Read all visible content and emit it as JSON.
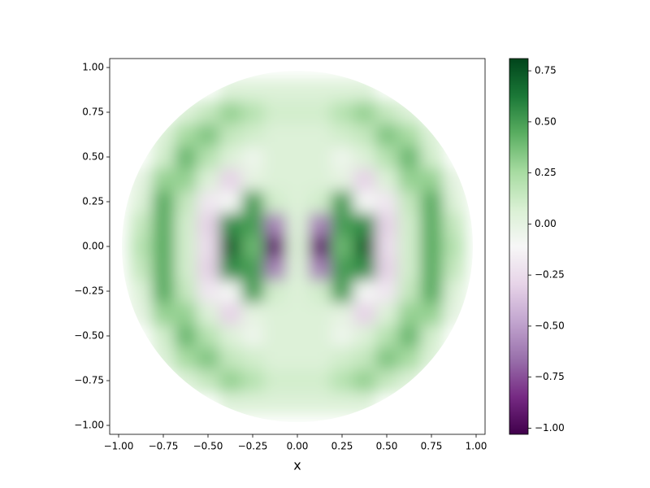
{
  "chart_data": {
    "type": "heatmap",
    "xlabel": "x",
    "x": [
      -1,
      -0.875,
      -0.75,
      -0.625,
      -0.5,
      -0.375,
      -0.25,
      -0.125,
      0,
      0.125,
      0.25,
      0.375,
      0.5,
      0.625,
      0.75,
      0.875,
      1
    ],
    "y": [
      -1,
      -0.875,
      -0.75,
      -0.625,
      -0.5,
      -0.375,
      -0.25,
      -0.125,
      0,
      0.125,
      0.25,
      0.375,
      0.5,
      0.625,
      0.75,
      0.875,
      1
    ],
    "z": [
      [
        null,
        null,
        null,
        null,
        null,
        null,
        null,
        null,
        null,
        null,
        null,
        null,
        null,
        null,
        null,
        null,
        null
      ],
      [
        null,
        null,
        null,
        null,
        null,
        0.05,
        0.05,
        0.05,
        0.05,
        0.05,
        0.05,
        0.05,
        null,
        null,
        null,
        null,
        null
      ],
      [
        null,
        null,
        null,
        0.05,
        0.15,
        0.3,
        0.2,
        0.1,
        0.1,
        0.1,
        0.2,
        0.3,
        0.15,
        0.05,
        null,
        null,
        null
      ],
      [
        null,
        null,
        0.05,
        0.25,
        0.35,
        0.15,
        0.1,
        0.05,
        0.05,
        0.05,
        0.1,
        0.15,
        0.35,
        0.25,
        0.05,
        null,
        null
      ],
      [
        null,
        null,
        0.1,
        0.4,
        0.2,
        0.05,
        -0.05,
        0.05,
        0.05,
        0.05,
        -0.05,
        0.05,
        0.2,
        0.4,
        0.1,
        null,
        null
      ],
      [
        null,
        0,
        0.3,
        0.3,
        0.05,
        -0.3,
        0,
        0.05,
        0.05,
        0.05,
        0,
        -0.3,
        0.05,
        0.3,
        0.3,
        0,
        null
      ],
      [
        null,
        0.05,
        0.45,
        0.15,
        -0.2,
        -0.1,
        0.5,
        0.1,
        0.05,
        0.1,
        0.5,
        -0.1,
        -0.2,
        0.15,
        0.45,
        0.05,
        null
      ],
      [
        null,
        0.15,
        0.45,
        0.1,
        -0.3,
        0.55,
        0.5,
        -0.6,
        0.05,
        -0.6,
        0.5,
        0.55,
        -0.3,
        0.1,
        0.45,
        0.15,
        null
      ],
      [
        null,
        0.2,
        0.45,
        0.1,
        -0.25,
        0.7,
        0.4,
        -0.9,
        0.05,
        -0.9,
        0.4,
        0.7,
        -0.25,
        0.1,
        0.45,
        0.2,
        null
      ],
      [
        null,
        0.15,
        0.45,
        0.1,
        -0.3,
        0.55,
        0.5,
        -0.6,
        0.05,
        -0.6,
        0.5,
        0.55,
        -0.3,
        0.1,
        0.45,
        0.15,
        null
      ],
      [
        null,
        0.05,
        0.45,
        0.15,
        -0.2,
        -0.1,
        0.5,
        0.1,
        0.05,
        0.1,
        0.5,
        -0.1,
        -0.2,
        0.15,
        0.45,
        0.05,
        null
      ],
      [
        null,
        0,
        0.3,
        0.3,
        0.05,
        -0.3,
        0,
        0.05,
        0.05,
        0.05,
        0,
        -0.3,
        0.05,
        0.3,
        0.3,
        0,
        null
      ],
      [
        null,
        null,
        0.1,
        0.4,
        0.2,
        0.05,
        -0.05,
        0.05,
        0.05,
        0.05,
        -0.05,
        0.05,
        0.2,
        0.4,
        0.1,
        null,
        null
      ],
      [
        null,
        null,
        0.05,
        0.25,
        0.35,
        0.15,
        0.1,
        0.05,
        0.05,
        0.05,
        0.1,
        0.15,
        0.35,
        0.25,
        0.05,
        null,
        null
      ],
      [
        null,
        null,
        null,
        0.05,
        0.15,
        0.3,
        0.2,
        0.1,
        0.1,
        0.1,
        0.2,
        0.3,
        0.15,
        0.05,
        null,
        null,
        null
      ],
      [
        null,
        null,
        null,
        null,
        null,
        0.05,
        0.05,
        0.05,
        0.05,
        0.05,
        0.05,
        0.05,
        null,
        null,
        null,
        null,
        null
      ],
      [
        null,
        null,
        null,
        null,
        null,
        null,
        null,
        null,
        null,
        null,
        null,
        null,
        null,
        null,
        null,
        null,
        null
      ]
    ],
    "xlim": [
      -1.05,
      1.05
    ],
    "ylim": [
      -1.05,
      1.05
    ],
    "xticks": [
      {
        "value": -1,
        "label": "−1.00"
      },
      {
        "value": -0.75,
        "label": "−0.75"
      },
      {
        "value": -0.5,
        "label": "−0.50"
      },
      {
        "value": -0.25,
        "label": "−0.25"
      },
      {
        "value": 0,
        "label": "0.00"
      },
      {
        "value": 0.25,
        "label": "0.25"
      },
      {
        "value": 0.5,
        "label": "0.50"
      },
      {
        "value": 0.75,
        "label": "0.75"
      },
      {
        "value": 1,
        "label": "1.00"
      }
    ],
    "yticks": [
      {
        "value": -1,
        "label": "−1.00"
      },
      {
        "value": -0.75,
        "label": "−0.75"
      },
      {
        "value": -0.5,
        "label": "−0.50"
      },
      {
        "value": -0.25,
        "label": "−0.25"
      },
      {
        "value": 0,
        "label": "0.00"
      },
      {
        "value": 0.25,
        "label": "0.25"
      },
      {
        "value": 0.5,
        "label": "0.50"
      },
      {
        "value": 0.75,
        "label": "0.75"
      },
      {
        "value": 1,
        "label": "1.00"
      }
    ],
    "clim": [
      -1.03,
      0.81
    ],
    "cticks": [
      {
        "value": -1,
        "label": "−1.00"
      },
      {
        "value": -0.75,
        "label": "−0.75"
      },
      {
        "value": -0.5,
        "label": "−0.50"
      },
      {
        "value": -0.25,
        "label": "−0.25"
      },
      {
        "value": 0,
        "label": "0.00"
      },
      {
        "value": 0.25,
        "label": "0.25"
      },
      {
        "value": 0.5,
        "label": "0.50"
      },
      {
        "value": 0.75,
        "label": "0.75"
      }
    ],
    "colormap": [
      "#40004b",
      "#762a83",
      "#9970ab",
      "#c2a5cf",
      "#e7d4e8",
      "#f7f7f7",
      "#d9f0d3",
      "#a6dba0",
      "#5aae61",
      "#1b7837",
      "#00441b"
    ]
  }
}
